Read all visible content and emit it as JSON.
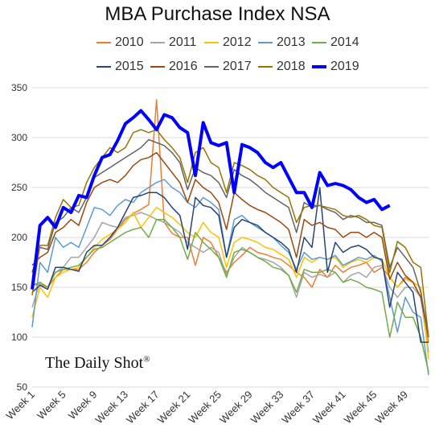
{
  "chart_data": {
    "type": "line",
    "title": "MBA Purchase Index NSA",
    "xlabel": "",
    "ylabel": "",
    "ylim": [
      50,
      350
    ],
    "yticks": [
      50,
      100,
      150,
      200,
      250,
      300,
      350
    ],
    "xtick_labels": [
      "Week 1",
      "Week 5",
      "Week 9",
      "Week 13",
      "Week 17",
      "Week 21",
      "Week 25",
      "Week 29",
      "Week 33",
      "Week 37",
      "Week 41",
      "Week 45",
      "Week 49"
    ],
    "xtick_weeks": [
      1,
      5,
      9,
      13,
      17,
      21,
      25,
      29,
      33,
      37,
      41,
      45,
      49
    ],
    "grid": true,
    "legend": "top",
    "series": [
      {
        "name": "2010",
        "color": "#ED7D31",
        "width": 1.5,
        "values": [
          152,
          153,
          150,
          160,
          168,
          168,
          168,
          175,
          185,
          192,
          198,
          208,
          218,
          224,
          228,
          233,
          338,
          215,
          204,
          200,
          200,
          172,
          200,
          195,
          180,
          165,
          175,
          182,
          190,
          185,
          183,
          180,
          178,
          172,
          165,
          160,
          150,
          168,
          160,
          172,
          165,
          170,
          172,
          175,
          165,
          170,
          160,
          150,
          160,
          155,
          140,
          95
        ]
      },
      {
        "name": "2011",
        "color": "#A5A5A5",
        "width": 1.5,
        "values": [
          130,
          155,
          150,
          165,
          170,
          180,
          180,
          190,
          200,
          215,
          212,
          210,
          220,
          222,
          225,
          222,
          218,
          215,
          210,
          205,
          195,
          190,
          185,
          190,
          185,
          162,
          180,
          190,
          185,
          180,
          178,
          175,
          170,
          162,
          140,
          165,
          160,
          163,
          160,
          165,
          155,
          162,
          165,
          160,
          170,
          172,
          150,
          140,
          150,
          150,
          140,
          85
        ]
      },
      {
        "name": "2012",
        "color": "#FFC000",
        "width": 1.5,
        "values": [
          120,
          150,
          140,
          160,
          165,
          168,
          170,
          180,
          190,
          198,
          203,
          208,
          215,
          225,
          210,
          220,
          230,
          225,
          220,
          213,
          205,
          200,
          215,
          205,
          200,
          170,
          195,
          200,
          198,
          195,
          190,
          188,
          183,
          178,
          160,
          180,
          175,
          180,
          178,
          180,
          170,
          175,
          178,
          175,
          180,
          178,
          160,
          150,
          158,
          155,
          150,
          78
        ]
      },
      {
        "name": "2013",
        "color": "#5B9BD5",
        "width": 1.5,
        "values": [
          110,
          175,
          165,
          200,
          190,
          195,
          190,
          210,
          230,
          228,
          222,
          232,
          238,
          235,
          245,
          250,
          255,
          258,
          250,
          245,
          235,
          230,
          240,
          235,
          228,
          180,
          218,
          222,
          215,
          210,
          205,
          200,
          192,
          185,
          168,
          185,
          178,
          180,
          178,
          182,
          172,
          176,
          180,
          178,
          182,
          176,
          140,
          105,
          140,
          125,
          120,
          62
        ]
      },
      {
        "name": "2014",
        "color": "#70AD47",
        "width": 1.5,
        "values": [
          152,
          155,
          150,
          165,
          168,
          170,
          172,
          180,
          188,
          190,
          195,
          200,
          205,
          208,
          210,
          200,
          218,
          218,
          210,
          200,
          178,
          205,
          195,
          188,
          180,
          160,
          185,
          188,
          185,
          180,
          176,
          170,
          168,
          162,
          145,
          168,
          165,
          165,
          168,
          165,
          155,
          158,
          155,
          150,
          148,
          145,
          100,
          135,
          120,
          120,
          100,
          65
        ]
      },
      {
        "name": "2015",
        "color": "#264478",
        "width": 1.5,
        "values": [
          145,
          152,
          148,
          170,
          170,
          168,
          166,
          185,
          192,
          192,
          200,
          210,
          225,
          240,
          242,
          245,
          245,
          240,
          230,
          222,
          188,
          240,
          232,
          230,
          222,
          180,
          210,
          218,
          215,
          212,
          205,
          200,
          195,
          188,
          165,
          200,
          190,
          250,
          165,
          195,
          185,
          190,
          192,
          188,
          180,
          178,
          130,
          165,
          155,
          145,
          95,
          95
        ]
      },
      {
        "name": "2016",
        "color": "#9E480E",
        "width": 1.5,
        "values": [
          172,
          180,
          185,
          205,
          210,
          218,
          212,
          235,
          250,
          255,
          258,
          255,
          262,
          272,
          278,
          280,
          285,
          275,
          265,
          255,
          235,
          258,
          250,
          245,
          235,
          208,
          245,
          238,
          232,
          228,
          225,
          220,
          215,
          208,
          180,
          218,
          212,
          215,
          210,
          208,
          200,
          205,
          205,
          200,
          205,
          200,
          158,
          175,
          162,
          155,
          140,
          100
        ]
      },
      {
        "name": "2017",
        "color": "#636363",
        "width": 1.5,
        "values": [
          165,
          190,
          188,
          215,
          220,
          230,
          225,
          240,
          260,
          265,
          270,
          275,
          280,
          285,
          290,
          298,
          295,
          292,
          285,
          275,
          248,
          270,
          265,
          262,
          255,
          240,
          268,
          262,
          258,
          252,
          245,
          240,
          235,
          230,
          205,
          235,
          230,
          232,
          228,
          225,
          218,
          222,
          220,
          215,
          215,
          212,
          170,
          190,
          180,
          170,
          145,
          100
        ]
      },
      {
        "name": "2018",
        "color": "#997300",
        "width": 1.5,
        "values": [
          142,
          192,
          192,
          220,
          238,
          230,
          232,
          255,
          270,
          280,
          290,
          285,
          290,
          305,
          308,
          305,
          308,
          298,
          290,
          280,
          255,
          285,
          290,
          275,
          270,
          245,
          275,
          272,
          268,
          262,
          258,
          250,
          245,
          240,
          215,
          230,
          232,
          232,
          230,
          228,
          222,
          220,
          222,
          218,
          212,
          210,
          165,
          196,
          190,
          175,
          170,
          100
        ]
      },
      {
        "name": "2019",
        "color": "#0000FF",
        "width": 4,
        "values": [
          148,
          212,
          220,
          210,
          230,
          225,
          242,
          240,
          262,
          280,
          283,
          297,
          314,
          320,
          327,
          318,
          308,
          323,
          320,
          310,
          305,
          262,
          315,
          295,
          292,
          295,
          245,
          293,
          290,
          285,
          275,
          270,
          275,
          260,
          245,
          245,
          230,
          265,
          252,
          254,
          252,
          248,
          240,
          235,
          238,
          228,
          232
        ]
      }
    ]
  },
  "watermark": {
    "text": "The Daily Shot",
    "mark": "®"
  }
}
